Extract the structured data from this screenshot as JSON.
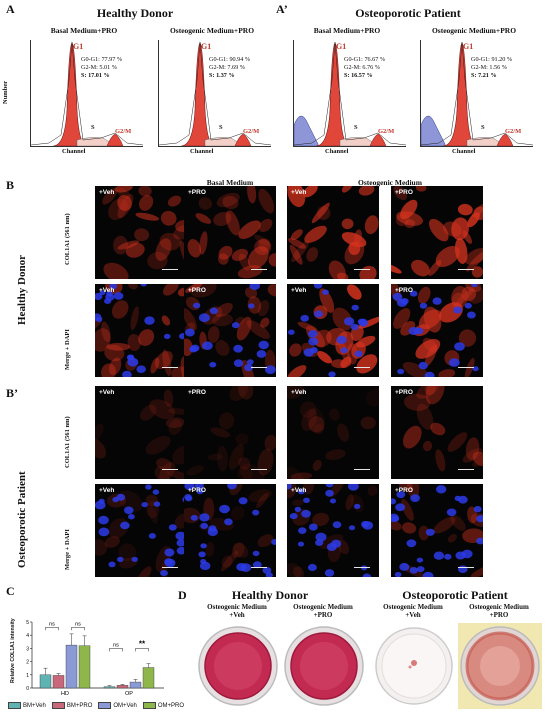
{
  "panelA": {
    "letter": "A",
    "title": "Healthy Donor",
    "y_axis": "Number",
    "plots": [
      {
        "header": "Basal Medium+PRO",
        "g1_label": "G1",
        "g0g1": "G0-G1: 77.97 %",
        "g2m": "G2-M: 5.01 %",
        "s_prefix": "S:",
        "s_value": "17.01 %",
        "s_label": "S",
        "g2m_label": "G2/M",
        "x_axis": "Channel"
      },
      {
        "header": "Osteogenic Medium+PRO",
        "g1_label": "G1",
        "g0g1": "G0-G1: 90.94 %",
        "g2m": "G2-M: 7.69 %",
        "s_prefix": "S:",
        "s_value": "1.37 %",
        "s_label": "S",
        "g2m_label": "G2/M",
        "x_axis": "Channel"
      }
    ]
  },
  "panelA2": {
    "letter": "A’",
    "title": "Osteoporotic Patient",
    "plots": [
      {
        "header": "Basal Medium+PRO",
        "g1_label": "G1",
        "g0g1": "G0-G1: 76.67 %",
        "g2m": "G2-M: 6.76 %",
        "s_prefix": "S:",
        "s_value": "16.57 %",
        "s_label": "S",
        "g2m_label": "G2/M",
        "x_axis": "Channel"
      },
      {
        "header": "Osteogenic Medium+PRO",
        "g1_label": "G1",
        "g0g1": "G0-G1: 91.20 %",
        "g2m": "G2-M: 1.56 %",
        "s_prefix": "S:",
        "s_value": "7.21 %",
        "s_label": "S",
        "g2m_label": "G2/M",
        "x_axis": "Channel"
      }
    ]
  },
  "panelB": {
    "letter": "B",
    "side_label": "Healthy Donor",
    "basal_header": "Basal Medium",
    "osteogenic_header": "Osteogenic Medium",
    "row1_label": "COL1A1 (561 nm)",
    "row2_label": "Merge + DAPI",
    "tiles": [
      "+Veh",
      "+PRO",
      "+Veh",
      "+PRO"
    ]
  },
  "panelB2": {
    "letter": "B’",
    "side_label": "Osteoporotic Patient",
    "row1_label": "COL1A1 (561 nm)",
    "row2_label": "Merge + DAPI",
    "tiles": [
      "+Veh",
      "+PRO",
      "+Veh",
      "+PRO"
    ]
  },
  "panelC": {
    "letter": "C",
    "chart_data": {
      "type": "bar",
      "ylabel": "Relative COL1A1 intensity",
      "ylim": [
        0,
        5
      ],
      "yticks": [
        "0",
        "1",
        "2",
        "3",
        "4",
        "5"
      ],
      "groups": [
        "HD",
        "OP"
      ],
      "series": [
        {
          "name": "BM+Veh",
          "color": "#5fb3b3",
          "values": [
            1.0,
            0.1
          ],
          "errors": [
            0.5,
            0.08
          ]
        },
        {
          "name": "BM+PRO",
          "color": "#c8687a",
          "values": [
            0.95,
            0.2
          ],
          "errors": [
            0.15,
            0.08
          ]
        },
        {
          "name": "OM+Veh",
          "color": "#8a9ad6",
          "values": [
            3.25,
            0.45
          ],
          "errors": [
            0.85,
            0.2
          ]
        },
        {
          "name": "OM+PRO",
          "color": "#8fb64a",
          "values": [
            3.2,
            1.55
          ],
          "errors": [
            0.75,
            0.3
          ]
        }
      ],
      "significance": [
        "ns",
        "ns",
        "ns",
        "**"
      ],
      "legend_position": "bottom"
    }
  },
  "panelD": {
    "letter": "D",
    "left_title": "Healthy Donor",
    "right_title": "Osteoporotic Patient",
    "dishes": [
      {
        "cap1": "Osteogenic Medium",
        "cap2": "+Veh"
      },
      {
        "cap1": "Osteogenic Medium",
        "cap2": "+PRO"
      },
      {
        "cap1": "Osteogenic Medium",
        "cap2": "+Veh"
      },
      {
        "cap1": "Osteogenic Medium",
        "cap2": "+PRO"
      }
    ]
  }
}
